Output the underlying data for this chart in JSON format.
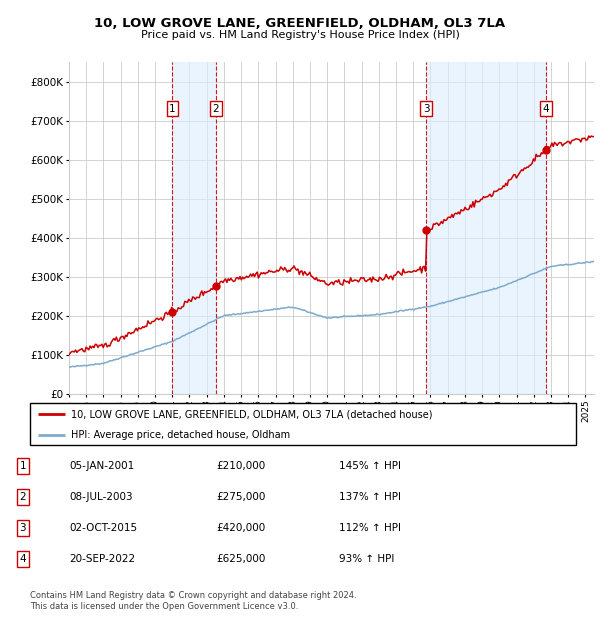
{
  "title1": "10, LOW GROVE LANE, GREENFIELD, OLDHAM, OL3 7LA",
  "title2": "Price paid vs. HM Land Registry's House Price Index (HPI)",
  "xlim_start": 1995.0,
  "xlim_end": 2025.5,
  "ylim": [
    0,
    850000
  ],
  "yticks": [
    0,
    100000,
    200000,
    300000,
    400000,
    500000,
    600000,
    700000,
    800000
  ],
  "ytick_labels": [
    "£0",
    "£100K",
    "£200K",
    "£300K",
    "£400K",
    "£500K",
    "£600K",
    "£700K",
    "£800K"
  ],
  "sale_dates": [
    2001.01,
    2003.52,
    2015.75,
    2022.72
  ],
  "sale_prices": [
    210000,
    275000,
    420000,
    625000
  ],
  "sale_labels": [
    "1",
    "2",
    "3",
    "4"
  ],
  "legend_line1": "10, LOW GROVE LANE, GREENFIELD, OLDHAM, OL3 7LA (detached house)",
  "legend_line2": "HPI: Average price, detached house, Oldham",
  "table_data": [
    [
      "1",
      "05-JAN-2001",
      "£210,000",
      "145% ↑ HPI"
    ],
    [
      "2",
      "08-JUL-2003",
      "£275,000",
      "137% ↑ HPI"
    ],
    [
      "3",
      "02-OCT-2015",
      "£420,000",
      "112% ↑ HPI"
    ],
    [
      "4",
      "20-SEP-2022",
      "£625,000",
      "93% ↑ HPI"
    ]
  ],
  "footnote1": "Contains HM Land Registry data © Crown copyright and database right 2024.",
  "footnote2": "This data is licensed under the Open Government Licence v3.0.",
  "hpi_color": "#7eaacc",
  "price_color": "#cc0000",
  "dashed_color": "#cc0000",
  "background_color": "#ffffff",
  "grid_color": "#cccccc",
  "shade_color": "#ddeeff"
}
